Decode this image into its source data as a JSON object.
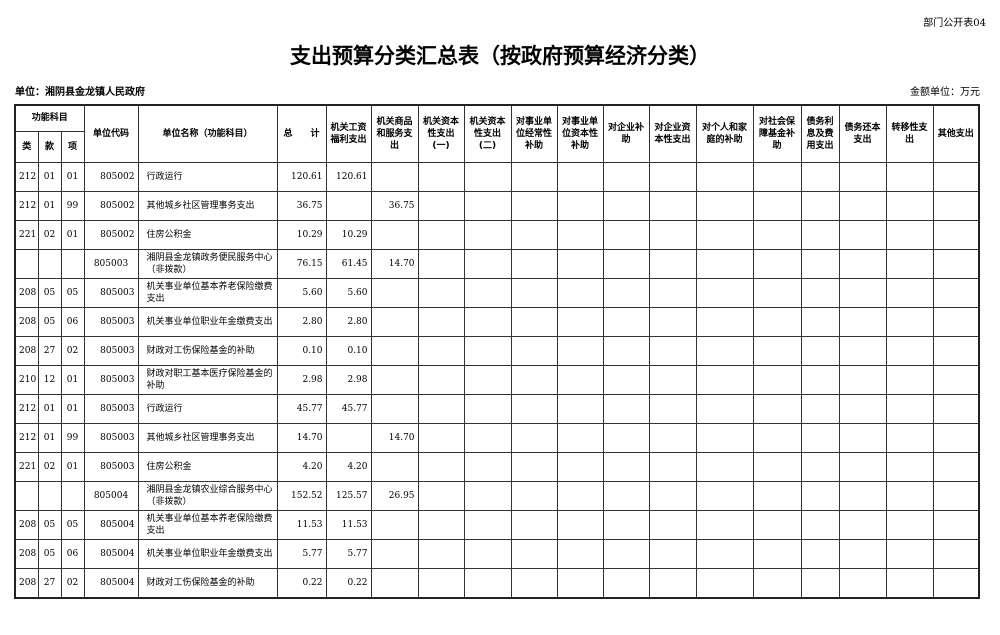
{
  "corner_tag": "部门公开表04",
  "title": "支出预算分类汇总表（按政府预算经济分类）",
  "unit": "单位：湘阴县金龙镇人民政府",
  "money_unit": "金额单位：万元",
  "headers": {
    "func_group": "功能科目",
    "lei": "类",
    "kuan": "款",
    "xiang": "项",
    "code": "单位代码",
    "name": "单位名称（功能科目）",
    "total": "总　　计",
    "cols": [
      "机关工资福利支出",
      "机关商品和服务支出",
      "机关资本性支出(一)",
      "机关资本性支出(二)",
      "对事业单位经常性补助",
      "对事业单位资本性补助",
      "对企业补助",
      "对企业资本性支出",
      "对个人和家庭的补助",
      "对社会保障基金补助",
      "债务利息及费用支出",
      "债务还本支出",
      "转移性支出",
      "其他支出"
    ]
  },
  "rows": [
    [
      "212",
      "01",
      "01",
      "805002",
      "行政运行",
      "120.61",
      "120.61",
      ""
    ],
    [
      "212",
      "01",
      "99",
      "805002",
      "其他城乡社区管理事务支出",
      "36.75",
      "",
      "36.75"
    ],
    [
      "221",
      "02",
      "01",
      "805002",
      "住房公积金",
      "10.29",
      "10.29",
      ""
    ],
    [
      "",
      "",
      "",
      "805003",
      "湘阴县金龙镇政务便民服务中心（非拨款）",
      "76.15",
      "61.45",
      "14.70"
    ],
    [
      "208",
      "05",
      "05",
      "805003",
      "机关事业单位基本养老保险缴费支出",
      "5.60",
      "5.60",
      ""
    ],
    [
      "208",
      "05",
      "06",
      "805003",
      "机关事业单位职业年金缴费支出",
      "2.80",
      "2.80",
      ""
    ],
    [
      "208",
      "27",
      "02",
      "805003",
      "财政对工伤保险基金的补助",
      "0.10",
      "0.10",
      ""
    ],
    [
      "210",
      "12",
      "01",
      "805003",
      "财政对职工基本医疗保险基金的补助",
      "2.98",
      "2.98",
      ""
    ],
    [
      "212",
      "01",
      "01",
      "805003",
      "行政运行",
      "45.77",
      "45.77",
      ""
    ],
    [
      "212",
      "01",
      "99",
      "805003",
      "其他城乡社区管理事务支出",
      "14.70",
      "",
      "14.70"
    ],
    [
      "221",
      "02",
      "01",
      "805003",
      "住房公积金",
      "4.20",
      "4.20",
      ""
    ],
    [
      "",
      "",
      "",
      "805004",
      "湘阴县金龙镇农业综合服务中心（非拨款）",
      "152.52",
      "125.57",
      "26.95"
    ],
    [
      "208",
      "05",
      "05",
      "805004",
      "机关事业单位基本养老保险缴费支出",
      "11.53",
      "11.53",
      ""
    ],
    [
      "208",
      "05",
      "06",
      "805004",
      "机关事业单位职业年金缴费支出",
      "5.77",
      "5.77",
      ""
    ],
    [
      "208",
      "27",
      "02",
      "805004",
      "财政对工伤保险基金的补助",
      "0.22",
      "0.22",
      ""
    ]
  ]
}
